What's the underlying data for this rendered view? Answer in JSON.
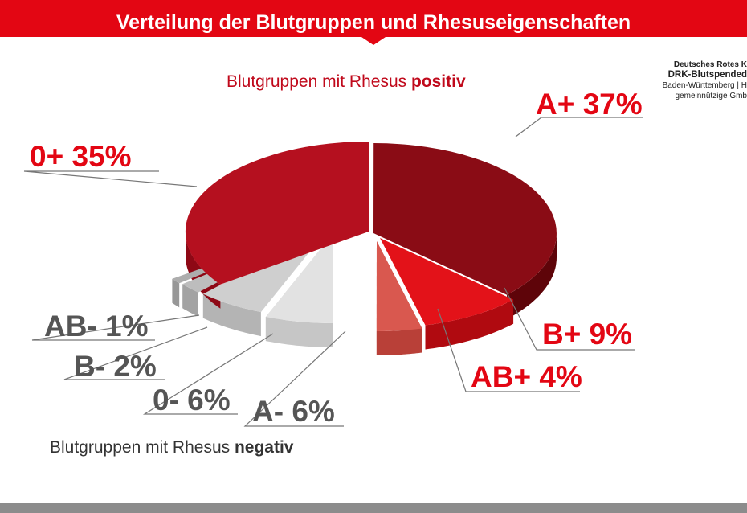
{
  "header": {
    "title": "Verteilung der Blutgruppen und Rhesuseigenschaften"
  },
  "organization": {
    "line1": "Deutsches Rotes K",
    "line2": "DRK-Blutspended",
    "line3": "Baden-Württemberg | H",
    "line4": "gemeinnützige Gmb"
  },
  "captions": {
    "positive_prefix": "Blutgruppen mit Rhesus ",
    "positive_bold": "positiv",
    "negative_prefix": "Blutgruppen mit Rhesus ",
    "negative_bold": "negativ"
  },
  "colors": {
    "banner": "#e30613",
    "positive_text": "#e30613",
    "negative_text": "#555555",
    "footer": "#8c8c8c"
  },
  "chart_data": {
    "type": "pie",
    "title": "Verteilung der Blutgruppen und Rhesuseigenschaften",
    "slices": [
      {
        "label": "A+ 37%",
        "value": 37,
        "group": "positiv",
        "color": "#8a0c15",
        "side": "#5e0409"
      },
      {
        "label": "B+ 9%",
        "value": 9,
        "group": "positiv",
        "color": "#e31219",
        "side": "#b00a10"
      },
      {
        "label": "AB+ 4%",
        "value": 4,
        "group": "positiv",
        "color": "#d9584f",
        "side": "#b94038"
      },
      {
        "label": "A- 6%",
        "value": 6,
        "group": "negativ",
        "color": "#e2e2e2",
        "side": "#c6c6c6"
      },
      {
        "label": "0- 6%",
        "value": 6,
        "group": "negativ",
        "color": "#cfcfcf",
        "side": "#b4b4b4"
      },
      {
        "label": "B- 2%",
        "value": 2,
        "group": "negativ",
        "color": "#bdbdbd",
        "side": "#a3a3a3"
      },
      {
        "label": "AB- 1%",
        "value": 1,
        "group": "negativ",
        "color": "#adadad",
        "side": "#979797"
      },
      {
        "label": "0+ 35%",
        "value": 35,
        "group": "positiv",
        "color": "#b5101f",
        "side": "#8e0815"
      }
    ],
    "legend": "none"
  }
}
